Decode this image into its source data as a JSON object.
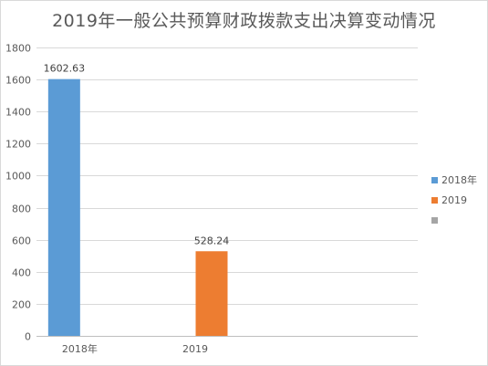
{
  "chart_data": {
    "type": "bar",
    "title": "2019年一般公共预算财政拨款支出决算变动情况",
    "categories": [
      "2018年",
      "2019"
    ],
    "series": [
      {
        "name": "2018年",
        "color": "#5b9bd5",
        "values": [
          1602.63,
          null
        ]
      },
      {
        "name": "2019",
        "color": "#ed7d31",
        "values": [
          null,
          528.24
        ]
      },
      {
        "name": "",
        "color": "#a5a5a5",
        "values": [
          null,
          null
        ]
      }
    ],
    "data_labels": [
      "1602.63",
      "528.24"
    ],
    "ylim": [
      0,
      1800
    ],
    "yticks": [
      0,
      200,
      400,
      600,
      800,
      1000,
      1200,
      1400,
      1600,
      1800
    ],
    "grid": true,
    "legend": "right",
    "xlabel": "",
    "ylabel": ""
  }
}
